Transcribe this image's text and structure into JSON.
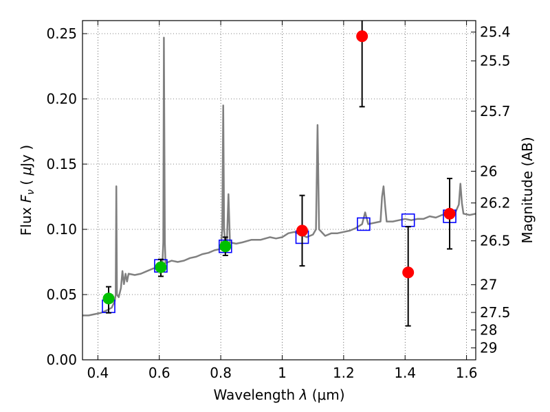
{
  "chart_data": {
    "type": "scatter",
    "xlabel": "Wavelength",
    "xlabel_symbol": "λ",
    "xlabel_units": "(μm)",
    "ylabel": "Flux",
    "ylabel_symbol": "F",
    "ylabel_subscript": "ν",
    "ylabel_units_open": "(",
    "ylabel_units_mu": "μ",
    "ylabel_units_rest": "Jy )",
    "y2label": "Magnitude (AB)",
    "xlim": [
      0.35,
      1.63
    ],
    "ylim": [
      0.0,
      0.26
    ],
    "grid": true,
    "legend": "none",
    "x_ticks": [
      {
        "value": 0.4,
        "label": "0.4"
      },
      {
        "value": 0.6,
        "label": "0.6"
      },
      {
        "value": 0.8,
        "label": "0.8"
      },
      {
        "value": 1.0,
        "label": "1"
      },
      {
        "value": 1.2,
        "label": "1.2"
      },
      {
        "value": 1.4,
        "label": "1.4"
      },
      {
        "value": 1.6,
        "label": "1.6"
      }
    ],
    "y_ticks": [
      {
        "value": 0.0,
        "label": "0.00"
      },
      {
        "value": 0.05,
        "label": "0.05"
      },
      {
        "value": 0.1,
        "label": "0.10"
      },
      {
        "value": 0.15,
        "label": "0.15"
      },
      {
        "value": 0.2,
        "label": "0.20"
      },
      {
        "value": 0.25,
        "label": "0.25"
      }
    ],
    "y2_ticks": [
      {
        "value": 25.4,
        "label": "25.4"
      },
      {
        "value": 25.5,
        "label": "25.5"
      },
      {
        "value": 25.7,
        "label": "25.7"
      },
      {
        "value": 26.0,
        "label": "26"
      },
      {
        "value": 26.2,
        "label": "26.2"
      },
      {
        "value": 26.5,
        "label": "26.5"
      },
      {
        "value": 27.0,
        "label": "27"
      },
      {
        "value": 27.5,
        "label": "27.5"
      },
      {
        "value": 28.0,
        "label": "28"
      },
      {
        "value": 29.0,
        "label": "29"
      }
    ],
    "series": [
      {
        "kind": "line",
        "color": "#808080",
        "points": [
          [
            0.35,
            0.034
          ],
          [
            0.37,
            0.034
          ],
          [
            0.39,
            0.035
          ],
          [
            0.41,
            0.036
          ],
          [
            0.43,
            0.038
          ],
          [
            0.445,
            0.04
          ],
          [
            0.455,
            0.045
          ],
          [
            0.458,
            0.05
          ],
          [
            0.46,
            0.133
          ],
          [
            0.462,
            0.05
          ],
          [
            0.468,
            0.048
          ],
          [
            0.475,
            0.055
          ],
          [
            0.48,
            0.068
          ],
          [
            0.485,
            0.058
          ],
          [
            0.49,
            0.066
          ],
          [
            0.495,
            0.06
          ],
          [
            0.5,
            0.066
          ],
          [
            0.52,
            0.065
          ],
          [
            0.54,
            0.066
          ],
          [
            0.56,
            0.068
          ],
          [
            0.58,
            0.07
          ],
          [
            0.6,
            0.071
          ],
          [
            0.61,
            0.073
          ],
          [
            0.613,
            0.09
          ],
          [
            0.615,
            0.247
          ],
          [
            0.618,
            0.09
          ],
          [
            0.62,
            0.074
          ],
          [
            0.64,
            0.076
          ],
          [
            0.66,
            0.075
          ],
          [
            0.68,
            0.076
          ],
          [
            0.7,
            0.078
          ],
          [
            0.72,
            0.079
          ],
          [
            0.74,
            0.081
          ],
          [
            0.76,
            0.082
          ],
          [
            0.78,
            0.084
          ],
          [
            0.8,
            0.085
          ],
          [
            0.805,
            0.1
          ],
          [
            0.808,
            0.195
          ],
          [
            0.811,
            0.1
          ],
          [
            0.815,
            0.087
          ],
          [
            0.82,
            0.09
          ],
          [
            0.825,
            0.127
          ],
          [
            0.83,
            0.09
          ],
          [
            0.85,
            0.089
          ],
          [
            0.87,
            0.09
          ],
          [
            0.9,
            0.092
          ],
          [
            0.93,
            0.092
          ],
          [
            0.96,
            0.094
          ],
          [
            0.98,
            0.093
          ],
          [
            1.0,
            0.094
          ],
          [
            1.02,
            0.097
          ],
          [
            1.04,
            0.098
          ],
          [
            1.06,
            0.096
          ],
          [
            1.08,
            0.094
          ],
          [
            1.1,
            0.096
          ],
          [
            1.11,
            0.1
          ],
          [
            1.115,
            0.18
          ],
          [
            1.12,
            0.1
          ],
          [
            1.14,
            0.095
          ],
          [
            1.16,
            0.097
          ],
          [
            1.18,
            0.097
          ],
          [
            1.2,
            0.098
          ],
          [
            1.22,
            0.099
          ],
          [
            1.24,
            0.101
          ],
          [
            1.26,
            0.104
          ],
          [
            1.27,
            0.113
          ],
          [
            1.28,
            0.104
          ],
          [
            1.3,
            0.105
          ],
          [
            1.32,
            0.106
          ],
          [
            1.325,
            0.125
          ],
          [
            1.33,
            0.133
          ],
          [
            1.335,
            0.118
          ],
          [
            1.34,
            0.106
          ],
          [
            1.36,
            0.106
          ],
          [
            1.38,
            0.107
          ],
          [
            1.4,
            0.108
          ],
          [
            1.42,
            0.107
          ],
          [
            1.44,
            0.108
          ],
          [
            1.46,
            0.108
          ],
          [
            1.48,
            0.11
          ],
          [
            1.5,
            0.109
          ],
          [
            1.52,
            0.111
          ],
          [
            1.54,
            0.112
          ],
          [
            1.56,
            0.111
          ],
          [
            1.575,
            0.119
          ],
          [
            1.58,
            0.135
          ],
          [
            1.585,
            0.12
          ],
          [
            1.59,
            0.112
          ],
          [
            1.61,
            0.111
          ],
          [
            1.63,
            0.112
          ]
        ]
      },
      {
        "kind": "square",
        "color": "#0000ff",
        "points": [
          [
            0.435,
            0.041
          ],
          [
            0.605,
            0.072
          ],
          [
            0.815,
            0.087
          ],
          [
            1.065,
            0.094
          ],
          [
            1.265,
            0.104
          ],
          [
            1.41,
            0.107
          ],
          [
            1.545,
            0.11
          ]
        ]
      },
      {
        "kind": "circle",
        "color": "#00c000",
        "points": [
          {
            "x": 0.435,
            "y": 0.047,
            "yerr_low": 0.036,
            "yerr_high": 0.056
          },
          {
            "x": 0.605,
            "y": 0.071,
            "yerr_low": 0.064,
            "yerr_high": 0.077
          },
          {
            "x": 0.815,
            "y": 0.087,
            "yerr_low": 0.08,
            "yerr_high": 0.094
          }
        ]
      },
      {
        "kind": "circle",
        "color": "#ff0000",
        "points": [
          {
            "x": 1.065,
            "y": 0.099,
            "yerr_low": 0.072,
            "yerr_high": 0.126
          },
          {
            "x": 1.26,
            "y": 0.248,
            "yerr_low": 0.194,
            "yerr_high": 0.262
          },
          {
            "x": 1.41,
            "y": 0.067,
            "yerr_low": 0.026,
            "yerr_high": 0.102
          },
          {
            "x": 1.545,
            "y": 0.112,
            "yerr_low": 0.085,
            "yerr_high": 0.139
          }
        ]
      }
    ]
  }
}
